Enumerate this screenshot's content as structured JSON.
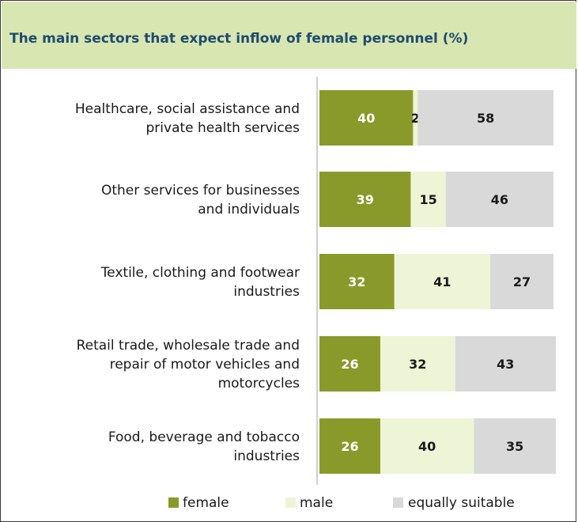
{
  "chart_data": {
    "type": "bar",
    "orientation": "horizontal",
    "stacked": true,
    "title": "The main sectors that expect inflow of female personnel (%)",
    "categories": [
      [
        "Healthcare, social assistance and",
        "private health services"
      ],
      [
        "Other services for businesses",
        "and individuals"
      ],
      [
        "Textile, clothing and footwear",
        "industries"
      ],
      [
        "Retail trade, wholesale trade and",
        "repair of motor vehicles and",
        "motorcycles"
      ],
      [
        "Food, beverage and tobacco",
        "industries"
      ]
    ],
    "series": [
      {
        "name": "female",
        "values": [
          40,
          39,
          32,
          26,
          26
        ],
        "color": "#8a9a2a",
        "label_color": "#ffffff"
      },
      {
        "name": "male",
        "values": [
          2,
          15,
          41,
          32,
          40
        ],
        "color": "#eef4d6",
        "label_color": "#1a1a1a"
      },
      {
        "name": "equally suitable",
        "values": [
          58,
          46,
          27,
          43,
          35
        ],
        "color": "#d9d9d9",
        "label_color": "#1a1a1a"
      }
    ],
    "xlim": [
      0,
      100
    ],
    "grid": false,
    "legend": "bottom"
  }
}
